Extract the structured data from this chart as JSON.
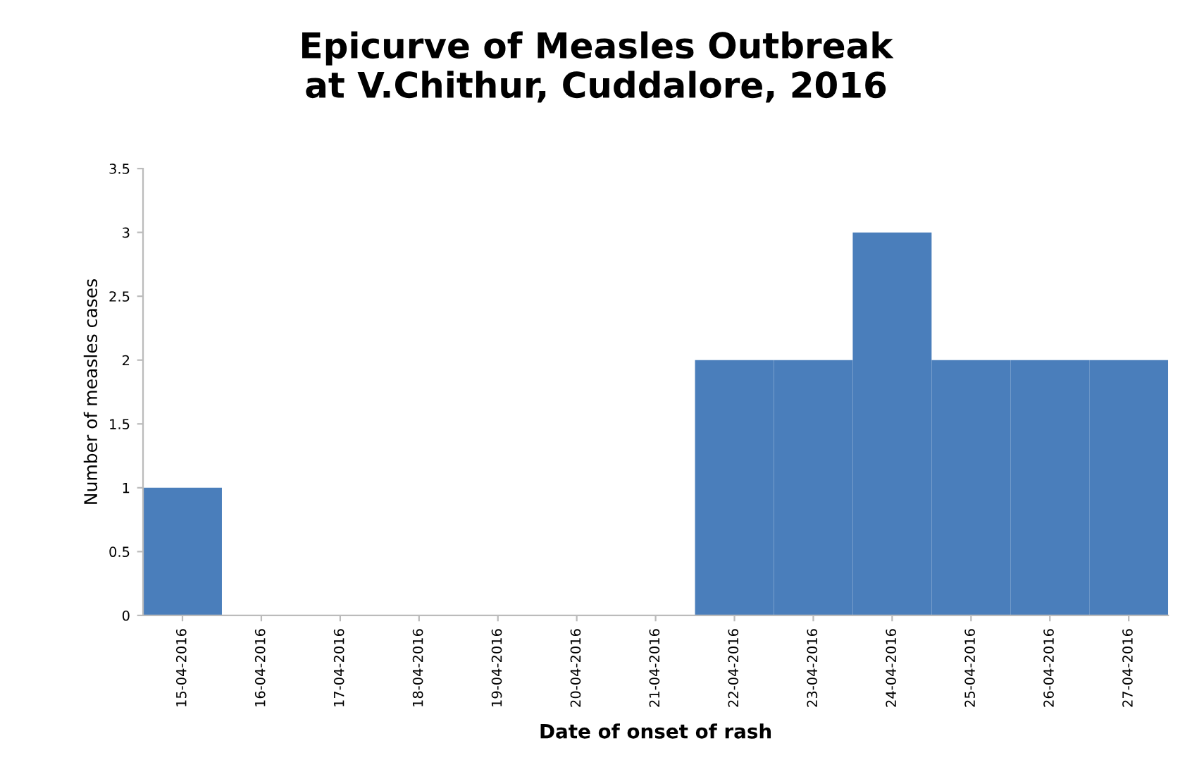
{
  "chart_data": {
    "type": "bar",
    "title": "Epicurve of Measles Outbreak\nat V.Chithur, Cuddalore, 2016",
    "xlabel": "Date of onset of rash",
    "ylabel": "Number of measles cases",
    "categories": [
      "15-04-2016",
      "16-04-2016",
      "17-04-2016",
      "18-04-2016",
      "19-04-2016",
      "20-04-2016",
      "21-04-2016",
      "22-04-2016",
      "23-04-2016",
      "24-04-2016",
      "25-04-2016",
      "26-04-2016",
      "27-04-2016"
    ],
    "values": [
      1,
      0,
      0,
      0,
      0,
      0,
      0,
      2,
      2,
      3,
      2,
      2,
      2
    ],
    "color": "#4a7ebb",
    "ylim": [
      0,
      3.5
    ],
    "yticks": [
      0,
      0.5,
      1,
      1.5,
      2,
      2.5,
      3,
      3.5
    ],
    "grid": false
  }
}
